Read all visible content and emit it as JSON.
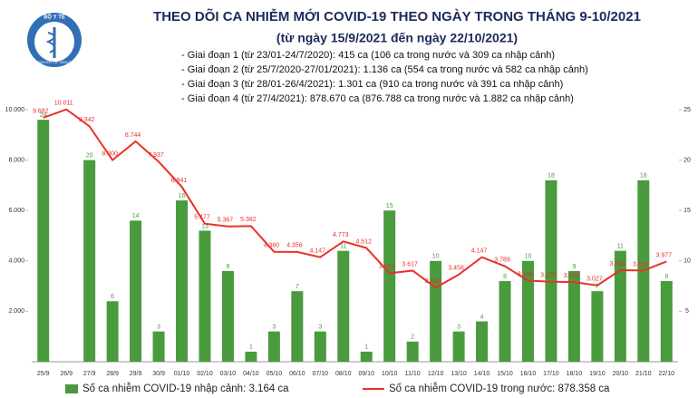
{
  "logo": {
    "top_text": "BỘ Y TẾ",
    "bottom_text": "MINISTRY OF HEALTH"
  },
  "chart_data": {
    "type": "combo",
    "title": "THEO DÕI CA NHIỄM MỚI COVID-19 THEO NGÀY TRONG THÁNG 9-10/2021",
    "subtitle": "(từ ngày 15/9/2021 đến ngày 22/10/2021)",
    "notes": [
      "- Giai đoạn 1 (từ 23/01-24/7/2020): 415 ca (106 ca trong nước và 309 ca nhập cảnh)",
      "- Giai đoạn 2 (từ 25/7/2020-27/01/2021): 1.136 ca (554 ca trong nước và 582 ca nhập cảnh)",
      "- Giai đoạn 3 (từ 28/01-26/4/2021): 1.301 ca (910 ca trong nước và 391 ca nhập cảnh)",
      "- Giai đoạn 4 (từ 27/4/2021): 878.670 ca (876.788 ca trong nước và 1.882 ca nhập cảnh)"
    ],
    "categories": [
      "25/9",
      "26/9",
      "27/9",
      "28/9",
      "29/9",
      "30/9",
      "01/10",
      "02/10",
      "03/10",
      "04/10",
      "05/10",
      "06/10",
      "07/10",
      "08/10",
      "09/10",
      "10/10",
      "11/10",
      "12/10",
      "13/10",
      "14/10",
      "15/10",
      "16/10",
      "17/10",
      "18/10",
      "19/10",
      "20/10",
      "21/10",
      "22/10"
    ],
    "series": [
      {
        "name": "Số ca nhiễm COVID-19 nhập cảnh: 3.164 ca",
        "type": "bar",
        "axis": "y2",
        "color": "#4a9a3e",
        "values": [
          24,
          null,
          20,
          6,
          14,
          3,
          16,
          13,
          9,
          1,
          3,
          7,
          3,
          11,
          1,
          15,
          2,
          10,
          3,
          4,
          8,
          10,
          18,
          9,
          7,
          11,
          18,
          8
        ]
      },
      {
        "name": "Số ca nhiễm COVID-19 trong nước: 878.358 ca",
        "type": "line",
        "color": "#e8312a",
        "values": [
          9682,
          10011,
          9342,
          8000,
          8744,
          7937,
          6941,
          5477,
          5367,
          5382,
          4360,
          4356,
          4147,
          4773,
          4512,
          3513,
          3617,
          2939,
          3458,
          4147,
          3789,
          3218,
          3175,
          3159,
          3027,
          3635,
          3618,
          3977
        ],
        "value_labels": [
          "9.682",
          "10.011",
          "9.342",
          "8.000",
          "8.744",
          "7.937",
          "6.941",
          "5.477",
          "5.367",
          "5.382",
          "4.360",
          "4.356",
          "4.147",
          "4.773",
          "4.512",
          "3.513",
          "3.617",
          "2.939",
          "3.458",
          "4.147",
          "3.789",
          "3.218",
          "3.175",
          "3.159",
          "3.027",
          "3.635",
          "3.618",
          "3.977"
        ]
      }
    ],
    "ylim": [
      0,
      10000
    ],
    "yticks": [
      {
        "value": 2000,
        "label": "2.000"
      },
      {
        "value": 4000,
        "label": "4.000"
      },
      {
        "value": 6000,
        "label": "6.000"
      },
      {
        "value": 8000,
        "label": "8.000"
      },
      {
        "value": 10000,
        "label": "10.000"
      }
    ],
    "y2lim": [
      0,
      25
    ],
    "y2ticks": [
      5,
      10,
      15,
      20,
      25
    ]
  }
}
